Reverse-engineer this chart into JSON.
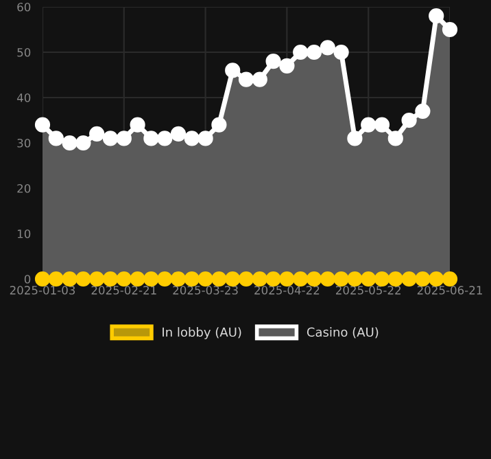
{
  "chart_data": {
    "type": "area",
    "categories": [
      "2025-01-03",
      null,
      null,
      null,
      null,
      null,
      "2025-02-21",
      null,
      null,
      null,
      null,
      null,
      "2025-03-23",
      null,
      null,
      null,
      null,
      null,
      "2025-04-22",
      null,
      null,
      null,
      null,
      null,
      "2025-05-22",
      null,
      null,
      null,
      null,
      null,
      "2025-06-21"
    ],
    "series": [
      {
        "name": "In lobby (AU)",
        "type": "line",
        "color": "#ffcc00",
        "values": [
          0,
          0,
          0,
          0,
          0,
          0,
          0,
          0,
          0,
          0,
          0,
          0,
          0,
          0,
          0,
          0,
          0,
          0,
          0,
          0,
          0,
          0,
          0,
          0,
          0,
          0,
          0,
          0,
          0,
          0,
          0
        ]
      },
      {
        "name": "Casino (AU)",
        "color": "#ffffff",
        "values": [
          34,
          31,
          30,
          30,
          32,
          31,
          31,
          34,
          31,
          31,
          32,
          31,
          31,
          34,
          46,
          44,
          44,
          48,
          47,
          50,
          50,
          51,
          50,
          31,
          34,
          34,
          31,
          35,
          37,
          58,
          55
        ]
      }
    ],
    "ylim": [
      0,
      60
    ],
    "yticks": [
      0,
      10,
      20,
      30,
      40,
      50,
      60
    ],
    "grid": true,
    "legend": "bottom",
    "marker": "circle"
  }
}
